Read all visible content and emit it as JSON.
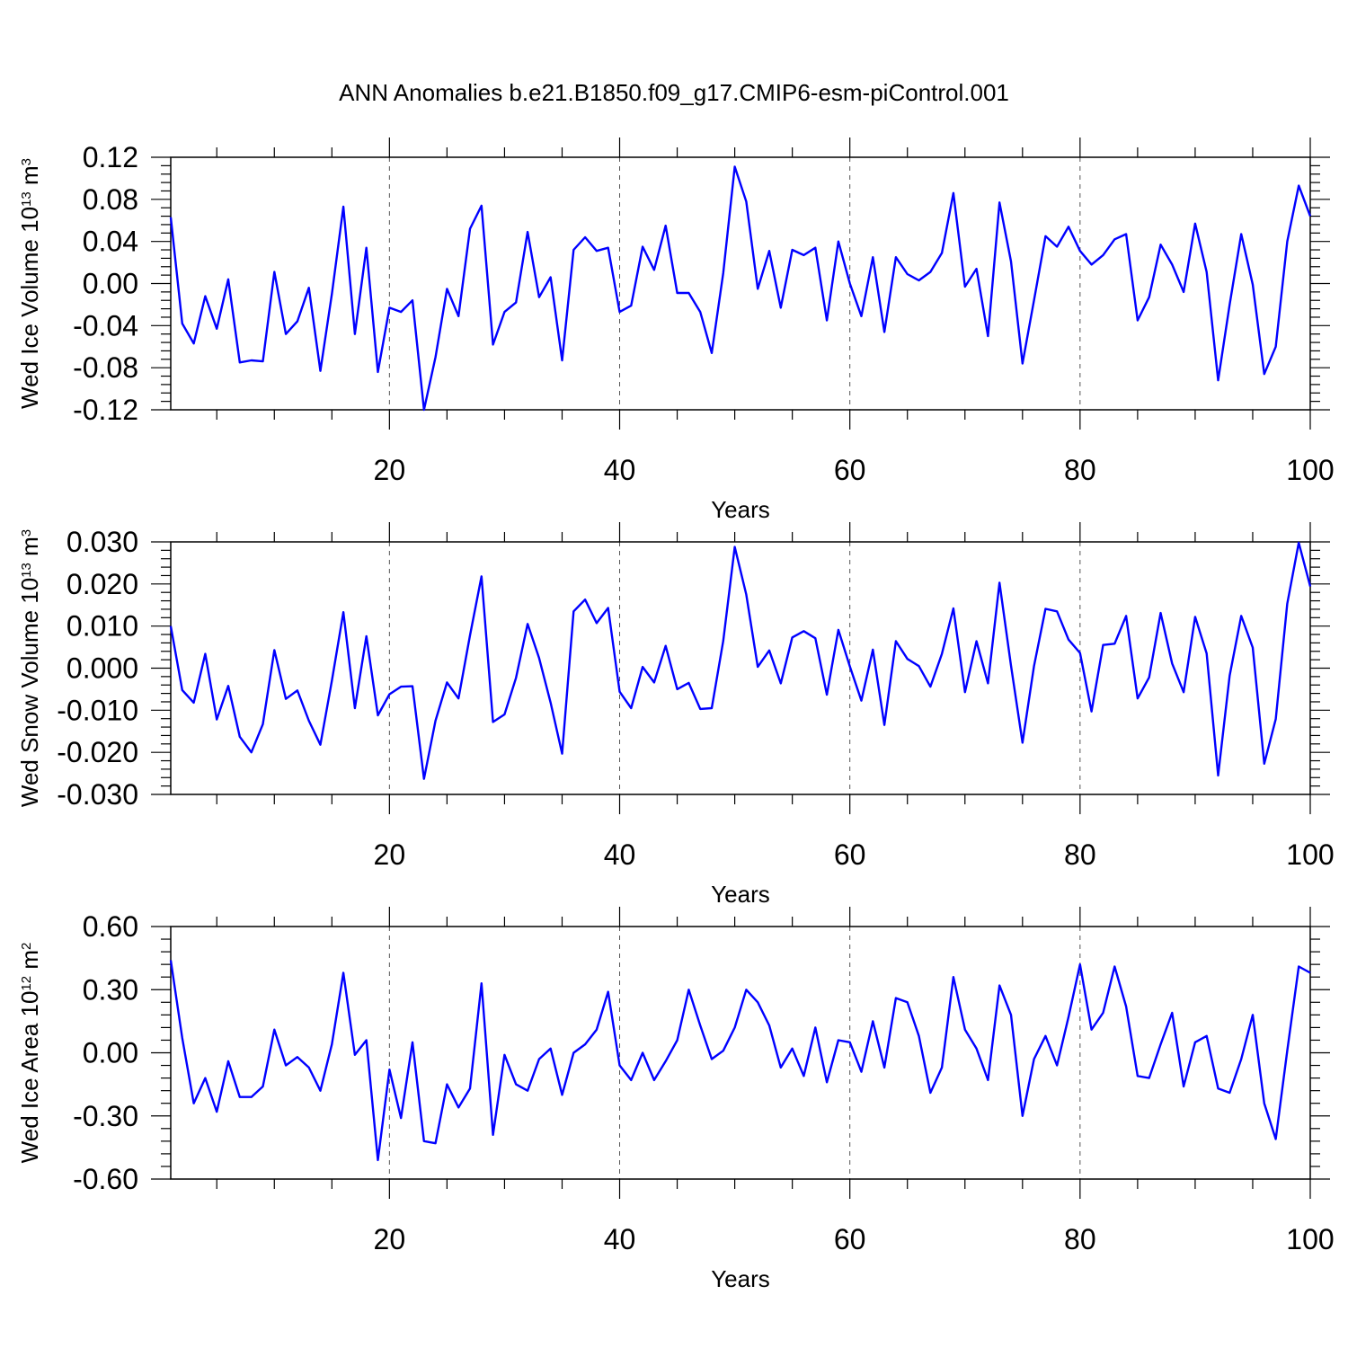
{
  "title": "ANN Anomalies b.e21.B1850.f09_g17.CMIP6-esm-piControl.001",
  "chart_data": [
    {
      "type": "line",
      "xlabel": "Years",
      "ylabel": {
        "base": "Wed Ice Volume 10",
        "exp": "13",
        "unit": " m",
        "unit_exp": "3"
      },
      "xlim": [
        1,
        100
      ],
      "ylim": [
        -0.12,
        0.12
      ],
      "xticks": [
        "20",
        "40",
        "60",
        "80",
        "100"
      ],
      "yticks": [
        "-0.12",
        "-0.08",
        "-0.04",
        "0.00",
        "0.04",
        "0.08",
        "0.12"
      ],
      "ytick_values": [
        -0.12,
        -0.08,
        -0.04,
        0.0,
        0.04,
        0.08,
        0.12
      ],
      "grid_x": [
        20,
        40,
        60,
        80
      ],
      "color": "#0000ff",
      "x_start": 1,
      "values": [
        0.063,
        -0.038,
        -0.057,
        -0.012,
        -0.043,
        0.004,
        -0.075,
        -0.073,
        -0.074,
        0.011,
        -0.048,
        -0.036,
        -0.004,
        -0.083,
        -0.01,
        0.073,
        -0.048,
        0.034,
        -0.084,
        -0.023,
        -0.027,
        -0.016,
        -0.12,
        -0.07,
        -0.005,
        -0.031,
        0.052,
        0.074,
        -0.058,
        -0.027,
        -0.018,
        0.049,
        -0.013,
        0.006,
        -0.073,
        0.032,
        0.044,
        0.031,
        0.034,
        -0.027,
        -0.021,
        0.035,
        0.013,
        0.055,
        -0.009,
        -0.009,
        -0.027,
        -0.066,
        0.01,
        0.111,
        0.078,
        -0.005,
        0.031,
        -0.023,
        0.032,
        0.027,
        0.034,
        -0.035,
        0.04,
        0.0,
        -0.031,
        0.025,
        -0.046,
        0.025,
        0.009,
        0.003,
        0.011,
        0.029,
        0.086,
        -0.003,
        0.014,
        -0.05,
        0.077,
        0.021,
        -0.076,
        -0.016,
        0.045,
        0.035,
        0.054,
        0.031,
        0.018,
        0.027,
        0.042,
        0.047,
        -0.035,
        -0.013,
        0.037,
        0.018,
        -0.008,
        0.057,
        0.011,
        -0.092,
        -0.02,
        0.047,
        -0.001,
        -0.086,
        -0.06,
        0.04,
        0.093,
        0.064
      ]
    },
    {
      "type": "line",
      "xlabel": "Years",
      "ylabel": {
        "base": "Wed Snow Volume 10",
        "exp": "13",
        "unit": " m",
        "unit_exp": "3"
      },
      "xlim": [
        1,
        100
      ],
      "ylim": [
        -0.03,
        0.03
      ],
      "xticks": [
        "20",
        "40",
        "60",
        "80",
        "100"
      ],
      "yticks": [
        "-0.030",
        "-0.020",
        "-0.010",
        "0.000",
        "0.010",
        "0.020",
        "0.030"
      ],
      "ytick_values": [
        -0.03,
        -0.02,
        -0.01,
        0.0,
        0.01,
        0.02,
        0.03
      ],
      "grid_x": [
        20,
        40,
        60,
        80
      ],
      "color": "#0000ff",
      "x_start": 1,
      "values": [
        0.01,
        -0.0052,
        -0.0082,
        0.0034,
        -0.0122,
        -0.0042,
        -0.0163,
        -0.02,
        -0.0133,
        0.0043,
        -0.0073,
        -0.0053,
        -0.0125,
        -0.0182,
        -0.003,
        0.0133,
        -0.0095,
        0.0076,
        -0.0112,
        -0.0062,
        -0.0044,
        -0.0043,
        -0.0263,
        -0.0125,
        -0.0034,
        -0.0072,
        0.0078,
        0.0218,
        -0.0128,
        -0.011,
        -0.0023,
        0.0105,
        0.0024,
        -0.0082,
        -0.0203,
        0.0135,
        0.0163,
        0.0107,
        0.0143,
        -0.0056,
        -0.0095,
        0.0003,
        -0.0034,
        0.0053,
        -0.005,
        -0.0035,
        -0.0097,
        -0.0095,
        0.0065,
        0.0288,
        0.0175,
        0.0003,
        0.0042,
        -0.0036,
        0.0073,
        0.0088,
        0.0071,
        -0.0063,
        0.0091,
        0.0004,
        -0.0077,
        0.0044,
        -0.0135,
        0.0064,
        0.0022,
        0.0005,
        -0.0044,
        0.0034,
        0.0142,
        -0.0057,
        0.0064,
        -0.0036,
        0.0203,
        0.0006,
        -0.0177,
        0.0005,
        0.0141,
        0.0135,
        0.0068,
        0.0036,
        -0.0103,
        0.0055,
        0.0058,
        0.0124,
        -0.0072,
        -0.0022,
        0.0131,
        0.0011,
        -0.0057,
        0.0122,
        0.0035,
        -0.0255,
        -0.0018,
        0.0124,
        0.0049,
        -0.0227,
        -0.0121,
        0.0153,
        0.0298,
        0.0194
      ]
    },
    {
      "type": "line",
      "xlabel": "Years",
      "ylabel": {
        "base": "Wed Ice Area 10",
        "exp": "12",
        "unit": " m",
        "unit_exp": "2"
      },
      "xlim": [
        1,
        100
      ],
      "ylim": [
        -0.6,
        0.6
      ],
      "xticks": [
        "20",
        "40",
        "60",
        "80",
        "100"
      ],
      "yticks": [
        "-0.60",
        "-0.30",
        "0.00",
        "0.30",
        "0.60"
      ],
      "ytick_values": [
        -0.6,
        -0.3,
        0.0,
        0.3,
        0.6
      ],
      "grid_x": [
        20,
        40,
        60,
        80
      ],
      "color": "#0000ff",
      "x_start": 1,
      "values": [
        0.44,
        0.07,
        -0.24,
        -0.12,
        -0.28,
        -0.04,
        -0.21,
        -0.21,
        -0.16,
        0.11,
        -0.06,
        -0.02,
        -0.07,
        -0.18,
        0.04,
        0.38,
        -0.01,
        0.06,
        -0.51,
        -0.08,
        -0.31,
        0.05,
        -0.42,
        -0.43,
        -0.15,
        -0.26,
        -0.17,
        0.33,
        -0.39,
        -0.01,
        -0.15,
        -0.18,
        -0.03,
        0.02,
        -0.2,
        0.0,
        0.04,
        0.11,
        0.29,
        -0.06,
        -0.13,
        0.0,
        -0.13,
        -0.04,
        0.06,
        0.3,
        0.13,
        -0.03,
        0.01,
        0.12,
        0.3,
        0.24,
        0.13,
        -0.07,
        0.02,
        -0.11,
        0.12,
        -0.14,
        0.06,
        0.05,
        -0.09,
        0.15,
        -0.07,
        0.26,
        0.24,
        0.08,
        -0.19,
        -0.07,
        0.36,
        0.11,
        0.02,
        -0.13,
        0.32,
        0.18,
        -0.3,
        -0.03,
        0.08,
        -0.06,
        0.17,
        0.42,
        0.11,
        0.19,
        0.41,
        0.22,
        -0.11,
        -0.12,
        0.04,
        0.19,
        -0.16,
        0.05,
        0.08,
        -0.17,
        -0.19,
        -0.03,
        0.18,
        -0.24,
        -0.41,
        0.01,
        0.41,
        0.38
      ]
    }
  ]
}
